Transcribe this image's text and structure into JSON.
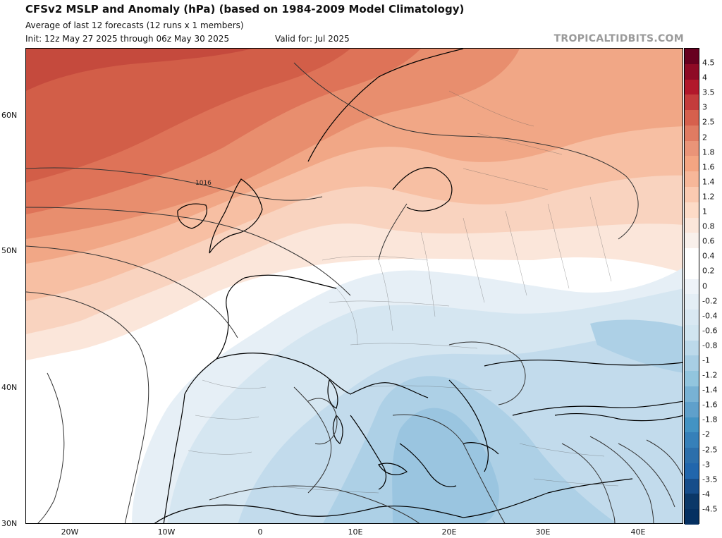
{
  "header": {
    "title": "CFSv2 MSLP and Anomaly (hPa) (based on 1984-2009 Model Climatology)",
    "subtitle": "Average of last 12 forecasts (12 runs x 1 members)",
    "init": "Init: 12z May 27 2025 through 06z May 30 2025",
    "valid": "Valid for: Jul 2025",
    "brand": "TROPICALTIDBITS.COM"
  },
  "map": {
    "lat_labels": [
      "60N",
      "50N",
      "40N",
      "30N"
    ],
    "lon_labels": [
      "20W",
      "10W",
      "0",
      "10E",
      "20E",
      "30E",
      "40E"
    ],
    "isobar_label": "1016"
  },
  "colorbar": {
    "labels": [
      "4.5",
      "4",
      "3.5",
      "3",
      "2.5",
      "2",
      "1.8",
      "1.6",
      "1.4",
      "1.2",
      "1",
      "0.8",
      "0.6",
      "0.4",
      "0.2",
      "0",
      "-0.2",
      "-0.4",
      "-0.6",
      "-0.8",
      "-1",
      "-1.2",
      "-1.4",
      "-1.6",
      "-1.8",
      "-2",
      "-2.5",
      "-3",
      "-3.5",
      "-4",
      "-4.5"
    ],
    "colors": [
      "#67001f",
      "#8e0a25",
      "#b2182b",
      "#c43c3c",
      "#d6604d",
      "#e07b62",
      "#ea9478",
      "#f4a582",
      "#f7b799",
      "#fbcab1",
      "#fddbc7",
      "#fbe6da",
      "#f9f0eb",
      "#ffffff",
      "#ffffff",
      "#eef3f8",
      "#e4eef5",
      "#d9e8f2",
      "#d1e5f0",
      "#bcd9ea",
      "#a8cee4",
      "#92c5de",
      "#78b2d4",
      "#5fa0cb",
      "#4393c3",
      "#3680b9",
      "#2c6fab",
      "#2166ac",
      "#164d8a",
      "#0b3868",
      "#053061"
    ]
  }
}
